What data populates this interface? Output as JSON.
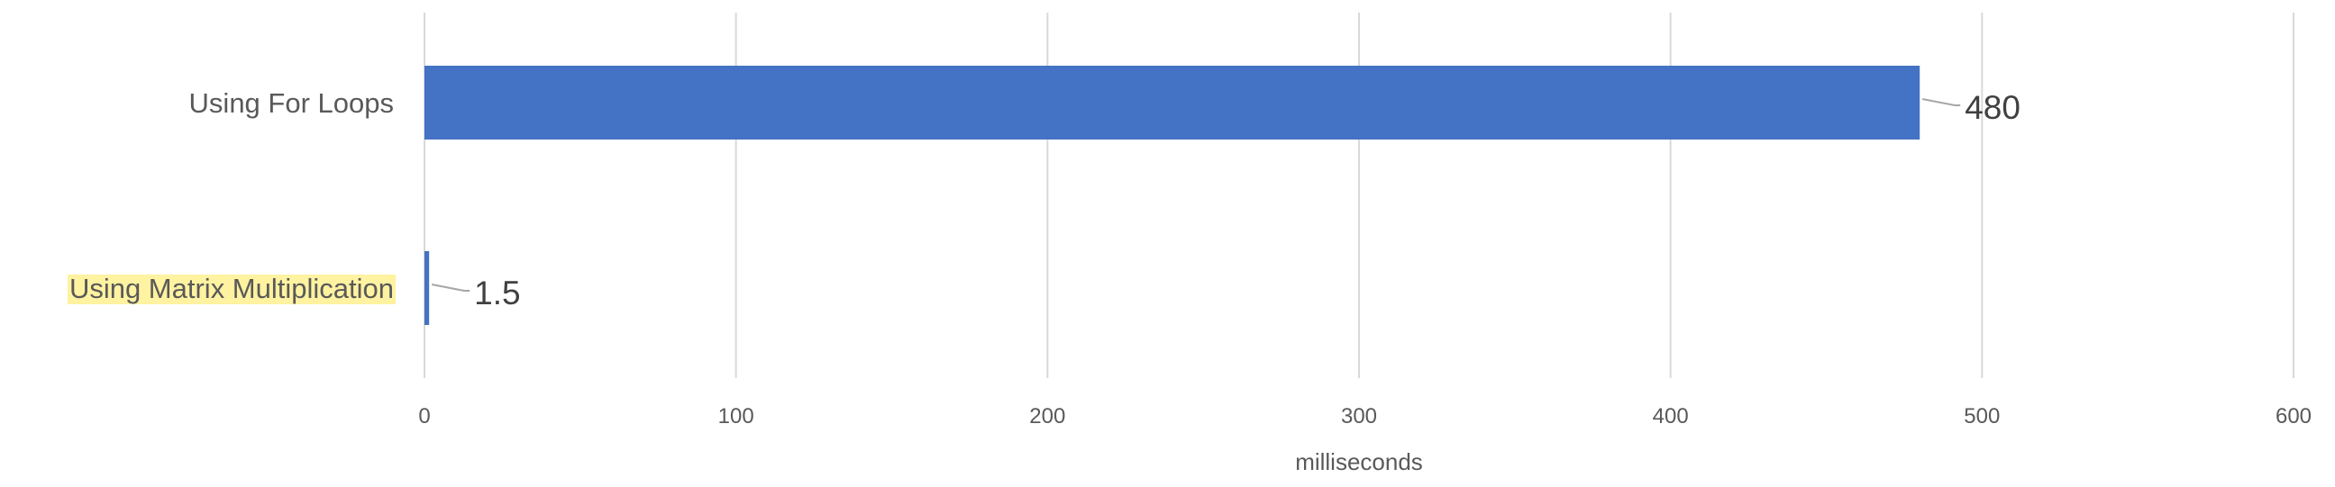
{
  "chart_data": {
    "type": "bar",
    "orientation": "horizontal",
    "categories": [
      "Using For Loops",
      "Using Matrix Multiplication"
    ],
    "values": [
      480,
      1.5
    ],
    "data_labels": [
      "480",
      "1.5"
    ],
    "highlighted_category": "Using Matrix Multiplication",
    "xlabel": "milliseconds",
    "ylabel": "",
    "xlim": [
      0,
      600
    ],
    "xticks": [
      0,
      100,
      200,
      300,
      400,
      500,
      600
    ],
    "xtick_labels": [
      "0",
      "100",
      "200",
      "300",
      "400",
      "500",
      "600"
    ],
    "grid": true,
    "legend": "none",
    "colors": {
      "bar": "#4472C4",
      "gridline": "#d9d9d9",
      "highlight": "#FFF2A0",
      "text": "#595959",
      "data_label": "#404040"
    }
  }
}
